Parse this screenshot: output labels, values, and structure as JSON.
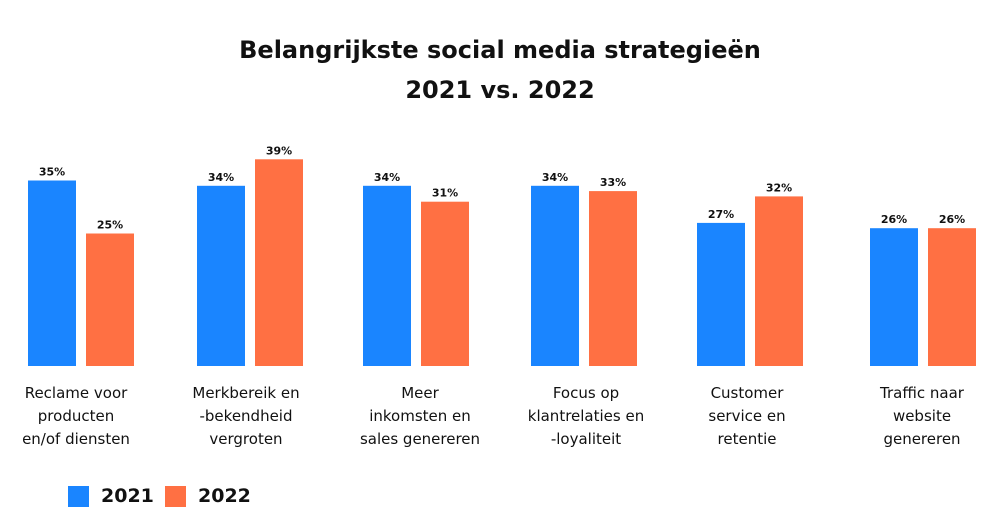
{
  "chart_data": {
    "type": "bar",
    "title": [
      "Belangrijkste social media strategieën",
      "2021 vs. 2022"
    ],
    "categories": [
      [
        "Reclame voor",
        "producten",
        "en/of diensten"
      ],
      [
        "Merkbereik en",
        "-bekendheid",
        "vergroten"
      ],
      [
        "Meer",
        "inkomsten en",
        "sales genereren"
      ],
      [
        "Focus op",
        "klantrelaties en",
        "-loyaliteit"
      ],
      [
        "Customer",
        "service en",
        "retentie"
      ],
      [
        "Traffic naar",
        "website",
        "genereren"
      ]
    ],
    "series": [
      {
        "name": "2021",
        "color": "#1A85FF",
        "values": [
          35,
          34,
          34,
          34,
          27,
          26
        ],
        "labels": [
          "35%",
          "34%",
          "34%",
          "34%",
          "27%",
          "26%"
        ]
      },
      {
        "name": "2022",
        "color": "#FF7043",
        "values": [
          25,
          39,
          31,
          33,
          32,
          26
        ],
        "labels": [
          "25%",
          "39%",
          "31%",
          "33%",
          "32%",
          "26%"
        ]
      }
    ],
    "xlabel": "",
    "ylabel": "",
    "ylim": [
      0,
      40
    ],
    "grid": false,
    "legend_position": "bottom-left"
  }
}
